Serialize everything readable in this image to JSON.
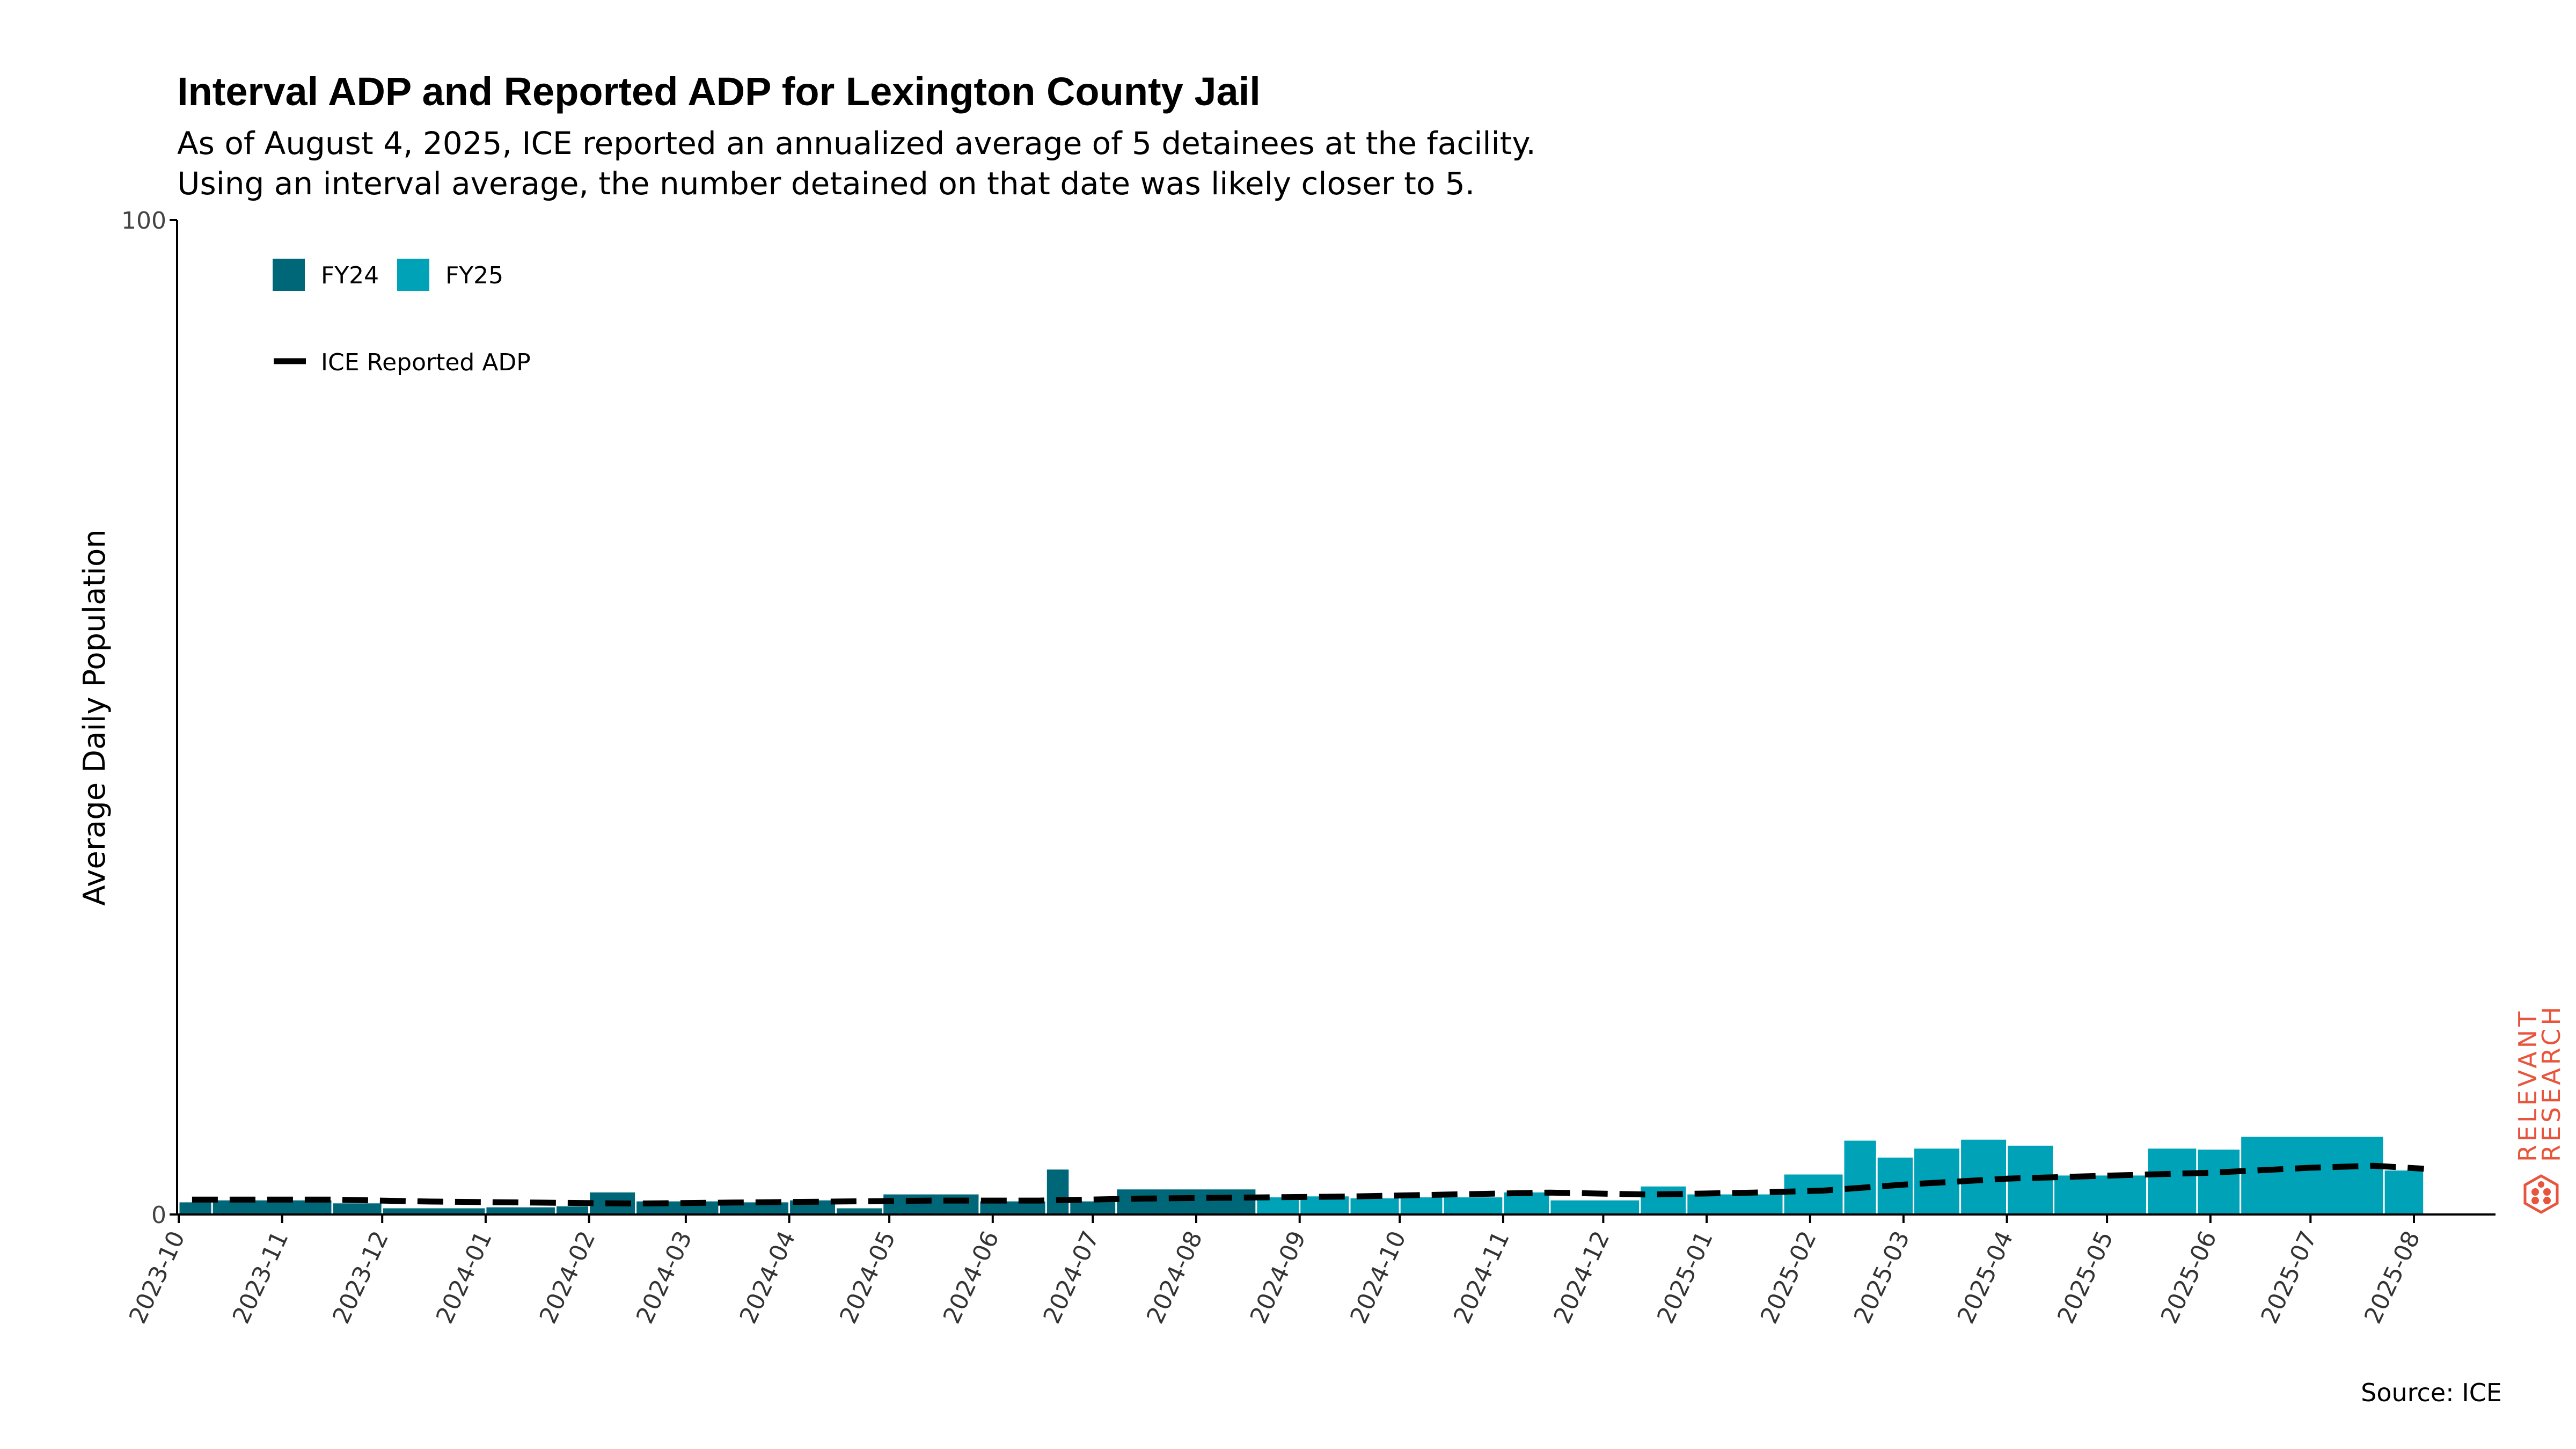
{
  "chart_data": {
    "type": "bar",
    "title": "Interval ADP and Reported ADP for Lexington County Jail",
    "subtitle": [
      "As of August 4, 2025, ICE reported an annualized average of 5 detainees at the facility.",
      "Using an interval average, the number detained on that date was likely closer to 5."
    ],
    "ylabel": "Average Daily Population",
    "xlabel": "",
    "ylim": [
      0,
      100
    ],
    "y_ticks": [
      0,
      100
    ],
    "x_ticks": [
      "2023-10",
      "2023-11",
      "2023-12",
      "2024-01",
      "2024-02",
      "2024-03",
      "2024-04",
      "2024-05",
      "2024-06",
      "2024-07",
      "2024-08",
      "2024-09",
      "2024-10",
      "2024-11",
      "2024-12",
      "2025-01",
      "2025-02",
      "2025-03",
      "2025-04",
      "2025-05",
      "2025-06",
      "2025-07",
      "2025-08"
    ],
    "legend": {
      "placement": "top-left",
      "bar_entries": [
        {
          "label": "FY24",
          "color": "#006778"
        },
        {
          "label": "FY25",
          "color": "#00A2B8"
        }
      ],
      "line_entry": {
        "label": "ICE Reported ADP",
        "color": "#000000"
      }
    },
    "series": [
      {
        "name": "FY24",
        "color": "#006778",
        "bars": [
          {
            "start": "2023-10-01",
            "end": "2023-10-11",
            "value": 1.3
          },
          {
            "start": "2023-10-11",
            "end": "2023-11-16",
            "value": 1.5
          },
          {
            "start": "2023-11-16",
            "end": "2023-12-01",
            "value": 1.2
          },
          {
            "start": "2023-12-01",
            "end": "2024-01-01",
            "value": 0.7
          },
          {
            "start": "2024-01-01",
            "end": "2024-01-22",
            "value": 0.8
          },
          {
            "start": "2024-01-22",
            "end": "2024-02-01",
            "value": 0.9
          },
          {
            "start": "2024-02-01",
            "end": "2024-02-15",
            "value": 2.3
          },
          {
            "start": "2024-02-15",
            "end": "2024-03-11",
            "value": 1.4
          },
          {
            "start": "2024-03-11",
            "end": "2024-04-01",
            "value": 1.3
          },
          {
            "start": "2024-04-01",
            "end": "2024-04-15",
            "value": 1.5
          },
          {
            "start": "2024-04-15",
            "end": "2024-04-29",
            "value": 0.7
          },
          {
            "start": "2024-04-29",
            "end": "2024-05-28",
            "value": 2.1
          },
          {
            "start": "2024-05-28",
            "end": "2024-06-17",
            "value": 1.4
          },
          {
            "start": "2024-06-17",
            "end": "2024-06-24",
            "value": 4.6
          },
          {
            "start": "2024-06-24",
            "end": "2024-07-08",
            "value": 1.4
          },
          {
            "start": "2024-07-08",
            "end": "2024-08-19",
            "value": 2.6
          }
        ]
      },
      {
        "name": "FY25",
        "color": "#00A2B8",
        "bars": [
          {
            "start": "2024-08-19",
            "end": "2024-09-01",
            "value": 1.8
          },
          {
            "start": "2024-09-01",
            "end": "2024-09-16",
            "value": 1.9
          },
          {
            "start": "2024-09-16",
            "end": "2024-10-01",
            "value": 1.7
          },
          {
            "start": "2024-10-01",
            "end": "2024-10-14",
            "value": 1.8
          },
          {
            "start": "2024-10-14",
            "end": "2024-11-01",
            "value": 1.8
          },
          {
            "start": "2024-11-01",
            "end": "2024-11-15",
            "value": 2.3
          },
          {
            "start": "2024-11-15",
            "end": "2024-12-12",
            "value": 1.5
          },
          {
            "start": "2024-12-12",
            "end": "2024-12-26",
            "value": 2.9
          },
          {
            "start": "2024-12-26",
            "end": "2025-01-24",
            "value": 2.1
          },
          {
            "start": "2025-01-24",
            "end": "2025-02-11",
            "value": 4.1
          },
          {
            "start": "2025-02-11",
            "end": "2025-02-21",
            "value": 7.5
          },
          {
            "start": "2025-02-21",
            "end": "2025-03-04",
            "value": 5.8
          },
          {
            "start": "2025-03-04",
            "end": "2025-03-18",
            "value": 6.7
          },
          {
            "start": "2025-03-18",
            "end": "2025-04-01",
            "value": 7.6
          },
          {
            "start": "2025-04-01",
            "end": "2025-04-15",
            "value": 7.0
          },
          {
            "start": "2025-04-15",
            "end": "2025-05-13",
            "value": 4.0
          },
          {
            "start": "2025-05-13",
            "end": "2025-05-28",
            "value": 6.7
          },
          {
            "start": "2025-05-28",
            "end": "2025-06-10",
            "value": 6.6
          },
          {
            "start": "2025-06-10",
            "end": "2025-07-23",
            "value": 7.9
          },
          {
            "start": "2025-07-23",
            "end": "2025-08-04",
            "value": 4.5
          }
        ]
      }
    ],
    "line": {
      "name": "ICE Reported ADP",
      "style": "dashed",
      "color": "#000000",
      "points": [
        {
          "date": "2023-10-05",
          "value": 1.5
        },
        {
          "date": "2023-11-15",
          "value": 1.5
        },
        {
          "date": "2023-12-15",
          "value": 1.3
        },
        {
          "date": "2024-01-15",
          "value": 1.2
        },
        {
          "date": "2024-02-15",
          "value": 1.1
        },
        {
          "date": "2024-03-15",
          "value": 1.2
        },
        {
          "date": "2024-04-15",
          "value": 1.3
        },
        {
          "date": "2024-05-15",
          "value": 1.4
        },
        {
          "date": "2024-06-15",
          "value": 1.4
        },
        {
          "date": "2024-07-15",
          "value": 1.6
        },
        {
          "date": "2024-08-15",
          "value": 1.7
        },
        {
          "date": "2024-09-15",
          "value": 1.8
        },
        {
          "date": "2024-10-15",
          "value": 2.0
        },
        {
          "date": "2024-11-15",
          "value": 2.2
        },
        {
          "date": "2024-12-15",
          "value": 2.0
        },
        {
          "date": "2025-01-15",
          "value": 2.2
        },
        {
          "date": "2025-02-05",
          "value": 2.4
        },
        {
          "date": "2025-03-01",
          "value": 3.0
        },
        {
          "date": "2025-04-01",
          "value": 3.6
        },
        {
          "date": "2025-05-01",
          "value": 3.9
        },
        {
          "date": "2025-06-01",
          "value": 4.2
        },
        {
          "date": "2025-07-01",
          "value": 4.7
        },
        {
          "date": "2025-07-20",
          "value": 4.9
        },
        {
          "date": "2025-08-04",
          "value": 4.6
        }
      ]
    },
    "source": "Source: ICE"
  },
  "branding": {
    "logo_text": [
      "RELEVANT",
      "RESEARCH"
    ],
    "color": "#E8553C"
  }
}
